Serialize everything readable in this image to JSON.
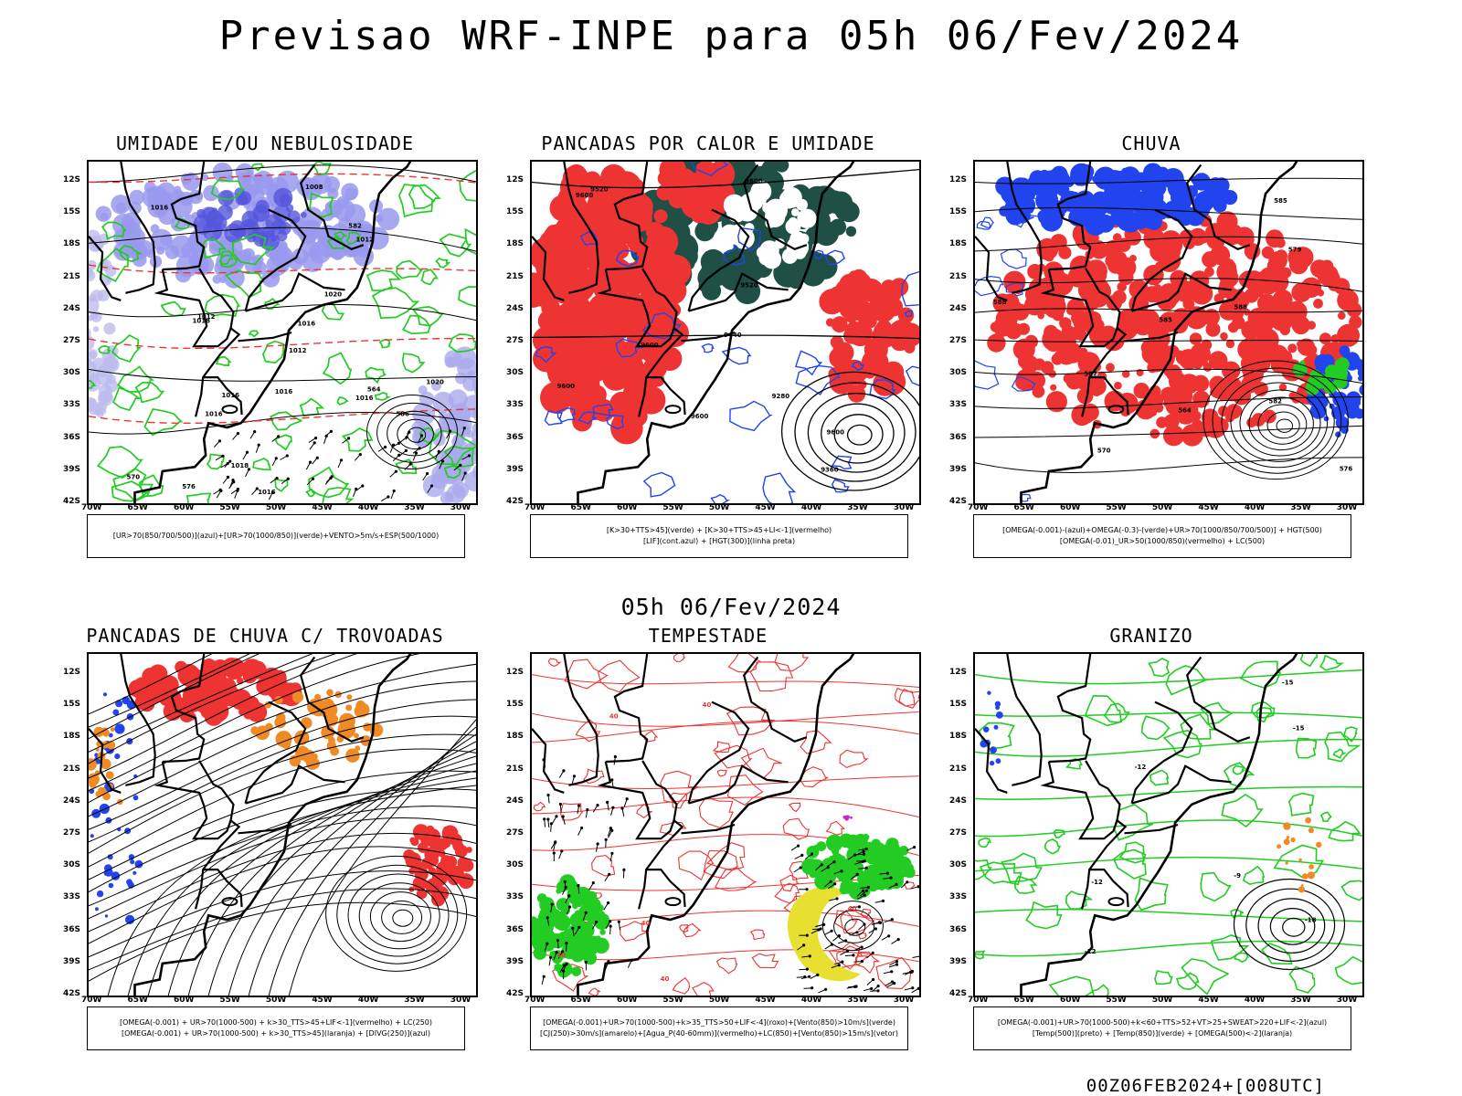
{
  "header": {
    "title": "Previsao WRF-INPE  para 05h 06/Fev/2024"
  },
  "middle": {
    "date": "05h 06/Fev/2024"
  },
  "footer": {
    "stamp": "00Z06FEB2024+[008UTC]"
  },
  "lat_labels": [
    "12S",
    "15S",
    "18S",
    "21S",
    "24S",
    "27S",
    "30S",
    "33S",
    "36S",
    "39S",
    "42S"
  ],
  "lon_labels": [
    "70W",
    "65W",
    "60W",
    "55W",
    "50W",
    "45W",
    "40W",
    "35W",
    "30W"
  ],
  "colors": {
    "red": "#ee3333",
    "green": "#22cc22",
    "blue": "#2244ee",
    "lavender": "#9999ee",
    "darkgreen": "#1f4f45",
    "orange": "#f08a24",
    "yellow": "#e8e030",
    "purple": "#cc22cc"
  },
  "panels": [
    {
      "id": "umidade",
      "title": "UMIDADE E/OU NEBULOSIDADE",
      "legend": [
        "[UR>70(850/700/500)](azul)+[UR>70(1000/850)](verde)+VENTO>5m/s+ESP(500/1000)"
      ],
      "contour_labels": [
        "1012",
        "1016",
        "1018",
        "1016",
        "1016",
        "1020",
        "1012",
        "1016",
        "1016",
        "1018",
        "1012",
        "1016",
        "1008",
        "1020",
        "1016",
        "576",
        "570",
        "564",
        "582",
        "586"
      ]
    },
    {
      "id": "pancadas-calor",
      "title": "PANCADAS POR CALOR E UMIDADE",
      "legend": [
        "[K>30+TTS>45](verde) + [K>30+TTS>45+LI<-1](vermelho)",
        "[LIF](cont.azul) + [HGT(300)](linha preta)"
      ],
      "contour_labels": [
        "9600",
        "9520",
        "9600",
        "9600",
        "9600",
        "9600",
        "9440",
        "9360",
        "9280",
        "9520",
        "9600"
      ]
    },
    {
      "id": "chuva",
      "title": "CHUVA",
      "legend": [
        "[OMEGA(-0.001)-(azul)+OMEGA(-0.3)-(verde)+UR>70(1000/850/700/500)] + HGT(500)",
        "[OMEGA(-0.01)_UR>50(1000/850)(vermelho) + LC(500)"
      ],
      "contour_labels": [
        "582",
        "585",
        "588",
        "576",
        "570",
        "564",
        "585",
        "588",
        "582",
        "579"
      ]
    },
    {
      "id": "pancadas-trovoadas",
      "title": "PANCADAS DE CHUVA C/ TROVOADAS",
      "legend": [
        "[OMEGA(-0.001) + UR>70(1000-500) + k>30_TTS>45+LIF<-1](vermelho) + LC(250)",
        "[OMEGA(-0.001) + UR>70(1000-500) + k>30_TTS>45](laranja) + [DIVG(250)](azul)"
      ],
      "contour_labels": []
    },
    {
      "id": "tempestade",
      "title": "TEMPESTADE",
      "legend": [
        "[OMEGA(-0.001)+UR>70(1000-500)+k>35_TTS>50+LIF<-4](roxo)+[Vento(850)>10m/s](verde)",
        "[CJ(250)>30m/s](amarelo)+[Agua_P(40-60mm)](vermelho)+LC(850)+[Vento(850)>15m/s](vetor)"
      ],
      "contour_labels": [
        "40",
        "40",
        "40",
        "40",
        "40",
        "40"
      ]
    },
    {
      "id": "granizo",
      "title": "GRANIZO",
      "legend": [
        "[OMEGA(-0.001)+UR>70(1000-500)+k<60+TTS>52+VT>25+SWEAT>220+LIF<-2](azul)",
        "[Temp(500)](preto) + [Temp(850)](verde) + [OMEGA(500)<-2](laranja)"
      ],
      "contour_labels": [
        "-12",
        "-15",
        "-9",
        "-12",
        "-15",
        "-18",
        "-12"
      ]
    }
  ]
}
